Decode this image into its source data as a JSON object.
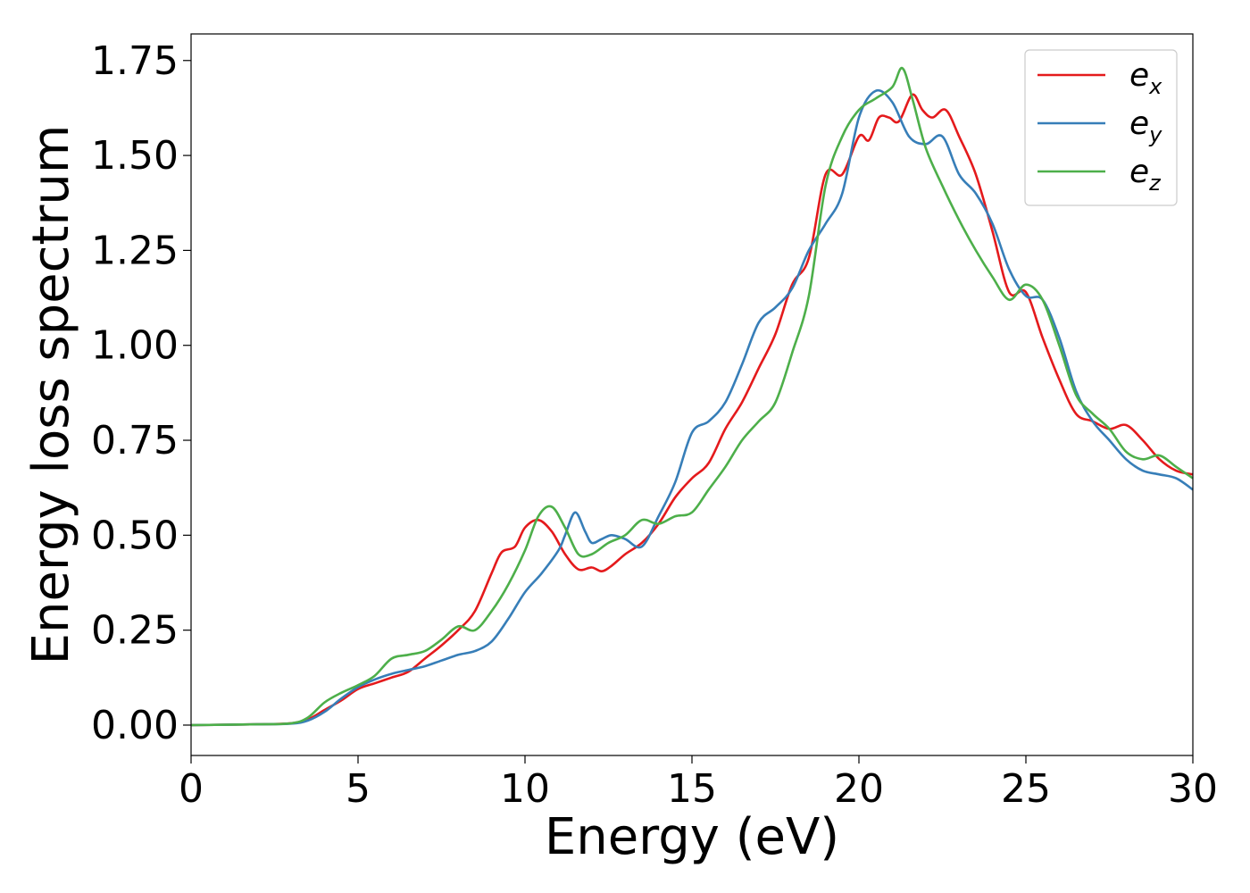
{
  "chart_data": {
    "type": "line",
    "title": "",
    "xlabel": "Energy (eV)",
    "ylabel": "Energy loss spectrum",
    "xlim": [
      0,
      30
    ],
    "ylim": [
      -0.08,
      1.82
    ],
    "xticks": [
      0,
      5,
      10,
      15,
      20,
      25,
      30
    ],
    "xtick_labels": [
      "0",
      "5",
      "10",
      "15",
      "20",
      "25",
      "30"
    ],
    "yticks": [
      0.0,
      0.25,
      0.5,
      0.75,
      1.0,
      1.25,
      1.5,
      1.75
    ],
    "ytick_labels": [
      "0.00",
      "0.25",
      "0.50",
      "0.75",
      "1.00",
      "1.25",
      "1.50",
      "1.75"
    ],
    "grid": false,
    "legend_position": "top-right",
    "series": [
      {
        "name": "e_x",
        "label_base": "e",
        "label_sub": "x",
        "color": "#e41a1c",
        "x": [
          0,
          2,
          3,
          3.5,
          4,
          4.5,
          5,
          5.5,
          6,
          6.5,
          7,
          7.5,
          8,
          8.5,
          9,
          9.3,
          9.7,
          10,
          10.4,
          10.8,
          11.2,
          11.6,
          12,
          12.3,
          12.6,
          13,
          13.5,
          14,
          14.5,
          15,
          15.5,
          16,
          16.5,
          17,
          17.5,
          18,
          18.5,
          19,
          19.5,
          20,
          20.3,
          20.6,
          20.9,
          21.2,
          21.6,
          21.9,
          22.2,
          22.6,
          23,
          23.5,
          24,
          24.5,
          25,
          25.5,
          26,
          26.5,
          27,
          27.5,
          28,
          28.5,
          29,
          29.5,
          30
        ],
        "y": [
          0,
          0.002,
          0.005,
          0.015,
          0.04,
          0.065,
          0.095,
          0.11,
          0.125,
          0.14,
          0.175,
          0.21,
          0.25,
          0.3,
          0.4,
          0.455,
          0.47,
          0.52,
          0.54,
          0.51,
          0.45,
          0.41,
          0.415,
          0.405,
          0.42,
          0.45,
          0.48,
          0.53,
          0.6,
          0.65,
          0.69,
          0.78,
          0.85,
          0.94,
          1.03,
          1.16,
          1.23,
          1.45,
          1.45,
          1.55,
          1.54,
          1.6,
          1.6,
          1.59,
          1.66,
          1.62,
          1.6,
          1.62,
          1.55,
          1.45,
          1.3,
          1.14,
          1.14,
          1.02,
          0.91,
          0.82,
          0.8,
          0.78,
          0.79,
          0.75,
          0.7,
          0.67,
          0.66
        ]
      },
      {
        "name": "e_y",
        "label_base": "e",
        "label_sub": "y",
        "color": "#377eb8",
        "x": [
          0,
          2,
          3,
          3.5,
          4,
          4.5,
          5,
          5.5,
          6,
          6.5,
          7,
          7.5,
          8,
          8.5,
          9,
          9.5,
          10,
          10.5,
          11,
          11.2,
          11.5,
          11.8,
          12,
          12.3,
          12.6,
          13,
          13.5,
          14,
          14.5,
          15,
          15.5,
          16,
          16.5,
          17,
          17.5,
          18,
          18.5,
          19,
          19.5,
          20,
          20.5,
          21,
          21.5,
          22,
          22.5,
          23,
          23.5,
          24,
          24.5,
          25,
          25.5,
          26,
          26.5,
          27,
          27.5,
          28,
          28.5,
          29,
          29.5,
          30
        ],
        "y": [
          0,
          0.002,
          0.004,
          0.012,
          0.035,
          0.07,
          0.1,
          0.12,
          0.135,
          0.145,
          0.155,
          0.17,
          0.185,
          0.195,
          0.22,
          0.28,
          0.35,
          0.4,
          0.46,
          0.5,
          0.56,
          0.51,
          0.48,
          0.49,
          0.5,
          0.49,
          0.47,
          0.55,
          0.64,
          0.77,
          0.8,
          0.85,
          0.95,
          1.06,
          1.1,
          1.15,
          1.25,
          1.32,
          1.4,
          1.6,
          1.67,
          1.64,
          1.55,
          1.53,
          1.55,
          1.45,
          1.4,
          1.32,
          1.2,
          1.13,
          1.12,
          1.02,
          0.88,
          0.8,
          0.75,
          0.7,
          0.67,
          0.66,
          0.65,
          0.62
        ]
      },
      {
        "name": "e_z",
        "label_base": "e",
        "label_sub": "z",
        "color": "#4daf4a",
        "x": [
          0,
          2,
          3,
          3.5,
          4,
          4.5,
          5,
          5.5,
          6,
          6.5,
          7,
          7.5,
          8,
          8.5,
          9,
          9.5,
          10,
          10.4,
          10.8,
          11.2,
          11.6,
          12,
          12.5,
          13,
          13.5,
          14,
          14.5,
          15,
          15.5,
          16,
          16.5,
          17,
          17.5,
          18,
          18.5,
          19,
          19.5,
          20,
          20.5,
          21,
          21.3,
          21.6,
          22,
          22.5,
          23,
          23.5,
          24,
          24.5,
          25,
          25.5,
          26,
          26.5,
          27,
          27.5,
          28,
          28.5,
          29,
          29.5,
          30
        ],
        "y": [
          0,
          0.002,
          0.005,
          0.02,
          0.06,
          0.085,
          0.105,
          0.13,
          0.175,
          0.185,
          0.195,
          0.225,
          0.26,
          0.25,
          0.3,
          0.37,
          0.46,
          0.55,
          0.575,
          0.52,
          0.45,
          0.45,
          0.48,
          0.5,
          0.54,
          0.53,
          0.55,
          0.56,
          0.62,
          0.68,
          0.75,
          0.8,
          0.85,
          0.98,
          1.13,
          1.42,
          1.55,
          1.62,
          1.65,
          1.68,
          1.73,
          1.65,
          1.52,
          1.42,
          1.33,
          1.25,
          1.18,
          1.12,
          1.16,
          1.12,
          1.0,
          0.87,
          0.82,
          0.78,
          0.72,
          0.7,
          0.71,
          0.68,
          0.65
        ]
      }
    ]
  }
}
